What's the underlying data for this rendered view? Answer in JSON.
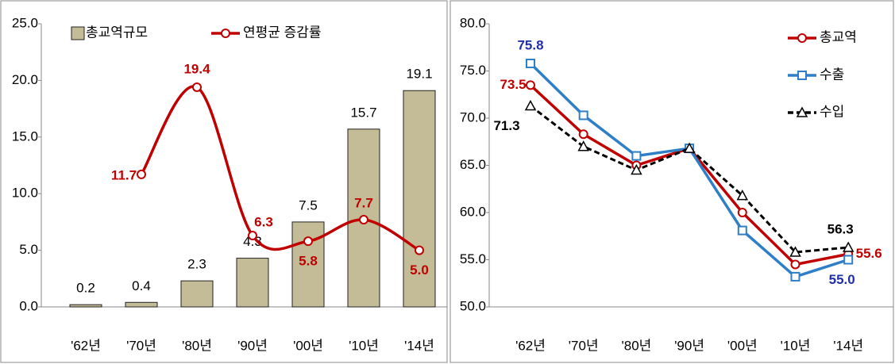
{
  "chart_data": [
    {
      "type": "bar",
      "categories": [
        "'62년",
        "'70년",
        "'80년",
        "'90년",
        "'00년",
        "'10년",
        "'14년"
      ],
      "series": [
        {
          "name": "총교역규모",
          "type": "bar",
          "color": "#c4bc96",
          "values": [
            0.2,
            0.4,
            2.3,
            4.3,
            7.5,
            15.7,
            19.1
          ]
        },
        {
          "name": "연평균 증감률",
          "type": "line",
          "color": "#c00000",
          "values": [
            null,
            11.7,
            19.4,
            6.3,
            5.8,
            7.7,
            5.0
          ],
          "value_labels": [
            null,
            "11.7",
            "19.4",
            "6.3",
            "5.8",
            "7.7",
            "5.0"
          ]
        }
      ],
      "ylim": [
        0,
        25
      ],
      "yticks": [
        {
          "value": 0,
          "label": "0.0"
        },
        {
          "value": 5,
          "label": "5.0"
        },
        {
          "value": 10,
          "label": "10.0"
        },
        {
          "value": 15,
          "label": "15.0"
        },
        {
          "value": 20,
          "label": "20.0"
        },
        {
          "value": 25,
          "label": "25.0"
        }
      ],
      "legend": "upper left"
    },
    {
      "type": "line",
      "categories": [
        "'62년",
        "'70년",
        "'80년",
        "'90년",
        "'00년",
        "'10년",
        "'14년"
      ],
      "series": [
        {
          "name": "총교역",
          "color": "#c00000",
          "marker": "circle",
          "values": [
            73.5,
            68.3,
            65.0,
            66.8,
            60.0,
            54.5,
            55.6
          ],
          "value_labels": [
            "73.5",
            null,
            null,
            null,
            null,
            null,
            "55.6"
          ]
        },
        {
          "name": "수출",
          "color": "#2e7fc8",
          "marker": "square",
          "values": [
            75.8,
            70.3,
            66.0,
            66.8,
            58.1,
            53.2,
            55.0
          ],
          "value_labels": [
            "75.8",
            null,
            null,
            null,
            null,
            null,
            "55.0"
          ]
        },
        {
          "name": "수입",
          "color": "#000000",
          "marker": "triangle",
          "dashed": true,
          "values": [
            71.3,
            67.0,
            64.5,
            66.8,
            61.8,
            55.8,
            56.3
          ],
          "value_labels": [
            "71.3",
            null,
            null,
            null,
            null,
            null,
            "56.3"
          ]
        }
      ],
      "ylim": [
        50,
        80
      ],
      "yticks": [
        {
          "value": 50,
          "label": "50.0"
        },
        {
          "value": 55,
          "label": "55.0"
        },
        {
          "value": 60,
          "label": "60.0"
        },
        {
          "value": 65,
          "label": "65.0"
        },
        {
          "value": 70,
          "label": "70.0"
        },
        {
          "value": 75,
          "label": "75.0"
        },
        {
          "value": 80,
          "label": "80.0"
        }
      ],
      "legend": "upper right"
    }
  ]
}
